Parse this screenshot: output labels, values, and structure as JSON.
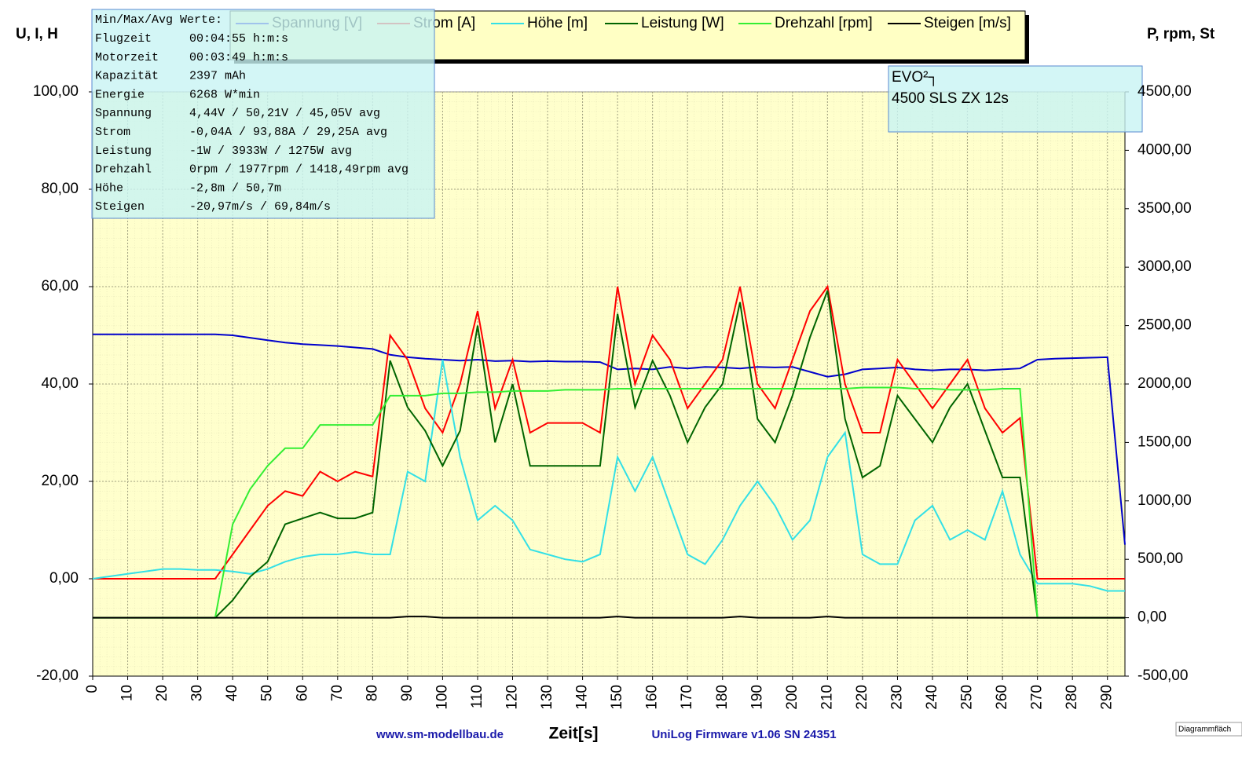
{
  "chart_data": {
    "type": "line",
    "y_axis_label": "U, I, H",
    "y2_axis_label": "P, rpm, St",
    "x_axis_label": "Zeit[s]",
    "footer_left": "www.sm-modellbau.de",
    "footer_right": "UniLog Firmware v1.06 SN 24351",
    "corner_label": "Diagrammfläch",
    "info_title": "Min/Max/Avg Werte:",
    "info_rows": [
      {
        "label": "Flugzeit",
        "value": "00:04:55 h:m:s"
      },
      {
        "label": "Motorzeit",
        "value": "00:03:49 h:m:s"
      },
      {
        "label": "Kapazität",
        "value": "2397 mAh"
      },
      {
        "label": "Energie",
        "value": "6268 W*min"
      },
      {
        "label": "Spannung",
        "value": "4,44V / 50,21V / 45,05V avg"
      },
      {
        "label": "Strom",
        "value": "-0,04A / 93,88A / 29,25A avg"
      },
      {
        "label": "Leistung",
        "value": "-1W / 3933W / 1275W avg"
      },
      {
        "label": "Drehzahl",
        "value": "0rpm / 1977rpm / 1418,49rpm avg"
      },
      {
        "label": "Höhe",
        "value": "-2,8m / 50,7m"
      },
      {
        "label": "Steigen",
        "value": "-20,97m/s / 69,84m/s"
      }
    ],
    "note_lines": [
      "EVO²┐",
      "4500 SLS ZX 12s"
    ],
    "xlim": [
      0,
      295
    ],
    "ylim": [
      -20,
      100
    ],
    "y2lim": [
      -500,
      4500
    ],
    "xticks": [
      0,
      10,
      20,
      30,
      40,
      50,
      60,
      70,
      80,
      90,
      100,
      110,
      120,
      130,
      140,
      150,
      160,
      170,
      180,
      190,
      200,
      210,
      220,
      230,
      240,
      250,
      260,
      270,
      280,
      290
    ],
    "yticks": [
      {
        "value": -20,
        "label": "-20,00"
      },
      {
        "value": 0,
        "label": "0,00"
      },
      {
        "value": 20,
        "label": "20,00"
      },
      {
        "value": 40,
        "label": "40,00"
      },
      {
        "value": 60,
        "label": "60,00"
      },
      {
        "value": 80,
        "label": "80,00"
      },
      {
        "value": 100,
        "label": "100,00"
      }
    ],
    "y2ticks": [
      {
        "value": -500,
        "label": "-500,00"
      },
      {
        "value": 0,
        "label": "0,00"
      },
      {
        "value": 500,
        "label": "500,00"
      },
      {
        "value": 1000,
        "label": "1000,00"
      },
      {
        "value": 1500,
        "label": "1500,00"
      },
      {
        "value": 2000,
        "label": "2000,00"
      },
      {
        "value": 2500,
        "label": "2500,00"
      },
      {
        "value": 3000,
        "label": "3000,00"
      },
      {
        "value": 3500,
        "label": "3500,00"
      },
      {
        "value": 4000,
        "label": "4000,00"
      },
      {
        "value": 4500,
        "label": "4500,00"
      }
    ],
    "x": [
      0,
      5,
      10,
      15,
      20,
      25,
      30,
      35,
      40,
      45,
      50,
      55,
      60,
      65,
      70,
      75,
      80,
      85,
      90,
      95,
      100,
      105,
      110,
      115,
      120,
      125,
      130,
      135,
      140,
      145,
      150,
      155,
      160,
      165,
      170,
      175,
      180,
      185,
      190,
      195,
      200,
      205,
      210,
      215,
      220,
      225,
      230,
      235,
      240,
      245,
      250,
      255,
      260,
      265,
      270,
      275,
      280,
      285,
      290,
      295
    ],
    "series": [
      {
        "name": "Spannung [V]",
        "color": "#0000cc",
        "axis": "y",
        "values": [
          50.2,
          50.2,
          50.2,
          50.2,
          50.2,
          50.2,
          50.2,
          50.2,
          50,
          49.5,
          49,
          48.5,
          48.2,
          48,
          47.8,
          47.5,
          47.2,
          46,
          45.5,
          45.2,
          45,
          44.8,
          45,
          44.7,
          44.8,
          44.6,
          44.7,
          44.6,
          44.6,
          44.5,
          43,
          43.2,
          43,
          43.5,
          43.2,
          43.5,
          43.4,
          43.2,
          43.5,
          43.4,
          43.5,
          42.5,
          41.5,
          42,
          43,
          43.2,
          43.4,
          43,
          42.8,
          43,
          43,
          42.8,
          43,
          43.2,
          45,
          45.2,
          45.3,
          45.4,
          45.5,
          7
        ]
      },
      {
        "name": "Strom [A]",
        "color": "#ff0000",
        "axis": "y",
        "values": [
          0,
          0,
          0,
          0,
          0,
          0,
          0,
          0,
          5,
          10,
          15,
          18,
          17,
          22,
          20,
          22,
          21,
          50,
          45,
          35,
          30,
          40,
          55,
          35,
          45,
          30,
          32,
          32,
          32,
          30,
          60,
          40,
          50,
          45,
          35,
          40,
          45,
          60,
          40,
          35,
          45,
          55,
          60,
          40,
          30,
          30,
          45,
          40,
          35,
          40,
          45,
          35,
          30,
          33,
          0,
          0,
          0,
          0,
          0,
          0
        ]
      },
      {
        "name": "Höhe [m]",
        "color": "#33e0e6",
        "axis": "y",
        "values": [
          0,
          0.5,
          1,
          1.5,
          2,
          2,
          1.8,
          1.8,
          1.5,
          1,
          2,
          3.5,
          4.5,
          5,
          5,
          5.5,
          5,
          5,
          22,
          20,
          45,
          25,
          12,
          15,
          12,
          6,
          5,
          4,
          3.5,
          5,
          25,
          18,
          25,
          15,
          5,
          3,
          8,
          15,
          20,
          15,
          8,
          12,
          25,
          30,
          5,
          3,
          3,
          12,
          15,
          8,
          10,
          8,
          18,
          5,
          -1,
          -1,
          -1,
          -1.5,
          -2.5,
          -2.5
        ]
      },
      {
        "name": "Leistung [W]",
        "color": "#006400",
        "axis": "y2",
        "values": [
          0,
          0,
          0,
          0,
          0,
          0,
          0,
          0,
          150,
          350,
          480,
          800,
          850,
          900,
          850,
          850,
          900,
          2200,
          1800,
          1600,
          1300,
          1600,
          2500,
          1500,
          2000,
          1300,
          1300,
          1300,
          1300,
          1300,
          2600,
          1800,
          2200,
          1900,
          1500,
          1800,
          2000,
          2700,
          1700,
          1500,
          1900,
          2400,
          2800,
          1700,
          1200,
          1300,
          1900,
          1700,
          1500,
          1800,
          2000,
          1600,
          1200,
          1200,
          0,
          0,
          0,
          0,
          0,
          0
        ]
      },
      {
        "name": "Drehzahl [rpm]",
        "color": "#33ee33",
        "axis": "y2",
        "values": [
          0,
          0,
          0,
          0,
          0,
          0,
          0,
          0,
          800,
          1100,
          1300,
          1450,
          1450,
          1650,
          1650,
          1650,
          1650,
          1900,
          1900,
          1900,
          1920,
          1920,
          1930,
          1930,
          1940,
          1940,
          1940,
          1950,
          1950,
          1950,
          1960,
          1960,
          1960,
          1960,
          1960,
          1960,
          1960,
          1960,
          1960,
          1960,
          1960,
          1960,
          1960,
          1960,
          1970,
          1970,
          1970,
          1960,
          1960,
          1950,
          1950,
          1950,
          1960,
          1960,
          0,
          0,
          0,
          0,
          0,
          0
        ]
      },
      {
        "name": "Steigen [m/s]",
        "color": "#000000",
        "axis": "y2",
        "values": [
          0,
          0,
          0,
          0,
          0,
          0,
          0,
          0,
          0,
          0,
          0,
          0,
          0,
          0,
          0,
          0,
          0,
          0,
          10,
          10,
          0,
          0,
          0,
          0,
          0,
          0,
          0,
          0,
          0,
          0,
          10,
          0,
          0,
          0,
          0,
          0,
          0,
          10,
          0,
          0,
          0,
          0,
          10,
          0,
          0,
          0,
          0,
          0,
          0,
          0,
          0,
          0,
          0,
          0,
          0,
          0,
          0,
          0,
          0,
          0
        ]
      }
    ]
  }
}
